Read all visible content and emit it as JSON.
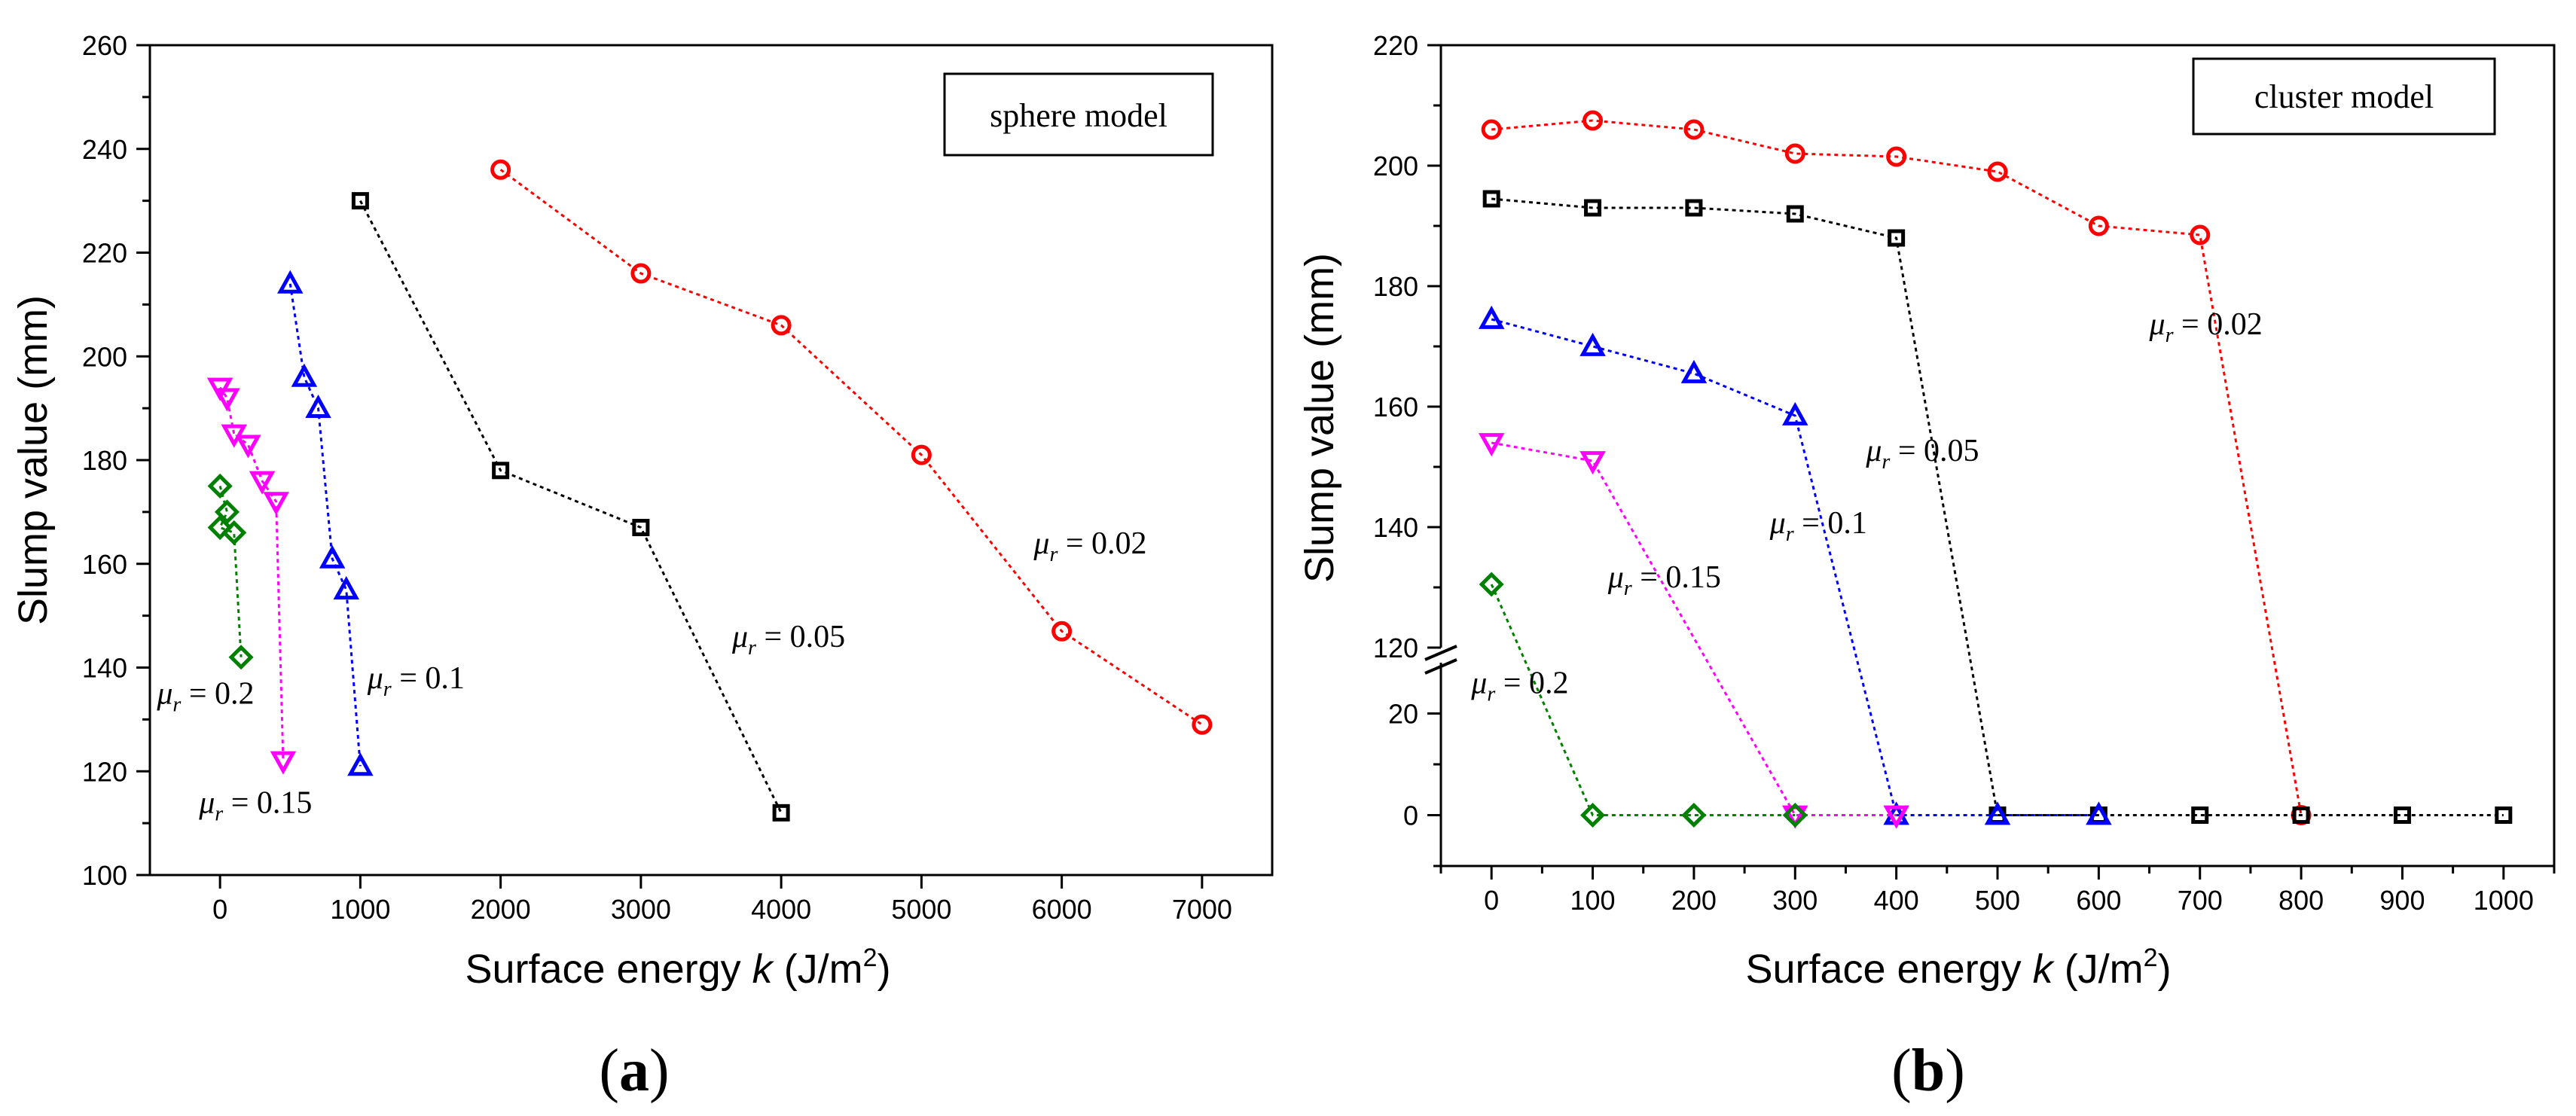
{
  "chart_data": [
    {
      "panel": "(a)",
      "type": "line",
      "legend_text": "sphere model",
      "xlabel": "Surface energy",
      "xlabel_var": "k",
      "xlabel_unit_open": "(J/m",
      "xlabel_unit_sup": "2",
      "xlabel_unit_close": ")",
      "ylabel": "Slump value (mm)",
      "xlim": [
        -500,
        7500
      ],
      "ylim": [
        100,
        260
      ],
      "xticks": [
        0,
        1000,
        2000,
        3000,
        4000,
        5000,
        6000,
        7000
      ],
      "yticks": [
        100,
        120,
        140,
        160,
        180,
        200,
        220,
        240,
        260
      ],
      "series": [
        {
          "name": "μr = 0.02",
          "mu": "0.02",
          "color": "#ff0000",
          "marker": "circle",
          "x": [
            2000,
            3000,
            4000,
            5000,
            6000,
            7000
          ],
          "y": [
            236,
            216,
            206,
            181,
            147,
            129
          ]
        },
        {
          "name": "μr = 0.05",
          "mu": "0.05",
          "color": "#000000",
          "marker": "square",
          "x": [
            1000,
            2000,
            3000,
            4000
          ],
          "y": [
            230,
            178,
            167,
            112
          ]
        },
        {
          "name": "μr = 0.1",
          "mu": "0.1",
          "color": "#0000ff",
          "marker": "triangle-up",
          "x": [
            500,
            600,
            700,
            800,
            900,
            1000
          ],
          "y": [
            214,
            196,
            190,
            161,
            155,
            121
          ]
        },
        {
          "name": "μr = 0.15",
          "mu": "0.15",
          "color": "#ff00ff",
          "marker": "triangle-down",
          "x": [
            0,
            50,
            100,
            200,
            300,
            400,
            450
          ],
          "y": [
            194,
            192,
            185,
            183,
            176,
            172,
            122
          ]
        },
        {
          "name": "μr = 0.2",
          "mu": "0.2",
          "color": "#008000",
          "marker": "diamond",
          "x": [
            0,
            50,
            0,
            100,
            150
          ],
          "y": [
            175,
            170,
            167,
            166,
            142
          ]
        }
      ],
      "annotations": [
        {
          "mu": "0.02",
          "x": 5800,
          "y": 162
        },
        {
          "mu": "0.05",
          "x": 3650,
          "y": 144
        },
        {
          "mu": "0.1",
          "x": 1050,
          "y": 136
        },
        {
          "mu": "0.15",
          "x": -150,
          "y": 112
        },
        {
          "mu": "0.2",
          "x": -450,
          "y": 133
        }
      ]
    },
    {
      "panel": "(b)",
      "type": "line",
      "legend_text": "cluster model",
      "xlabel": "Surface energy",
      "xlabel_var": "k",
      "xlabel_unit_open": "(J/m",
      "xlabel_unit_sup": "2",
      "xlabel_unit_close": ")",
      "ylabel": "Slump value (mm)",
      "xlim": [
        -50,
        1050
      ],
      "ylim_lower": [
        -10,
        30
      ],
      "ylim_upper": [
        120,
        220
      ],
      "axis_break": "between 30 and 120",
      "xticks": [
        0,
        100,
        200,
        300,
        400,
        500,
        600,
        700,
        800,
        900,
        1000
      ],
      "yticks_lower": [
        0,
        20
      ],
      "yticks_upper": [
        120,
        140,
        160,
        180,
        200,
        220
      ],
      "series": [
        {
          "name": "μr = 0.02",
          "mu": "0.02",
          "color": "#ff0000",
          "marker": "circle",
          "x": [
            0,
            100,
            200,
            300,
            400,
            500,
            600,
            700,
            800
          ],
          "y": [
            206,
            207.5,
            206,
            202,
            201.5,
            199,
            190,
            188.5,
            0
          ]
        },
        {
          "name": "μr = 0.05",
          "mu": "0.05",
          "color": "#000000",
          "marker": "square",
          "x": [
            0,
            100,
            200,
            300,
            400,
            500,
            600,
            700,
            800,
            900,
            1000
          ],
          "y": [
            194.5,
            193,
            193,
            192,
            188,
            0,
            0,
            0,
            0,
            0,
            0
          ]
        },
        {
          "name": "μr = 0.1",
          "mu": "0.1",
          "color": "#0000ff",
          "marker": "triangle-up",
          "x": [
            0,
            100,
            200,
            300,
            400,
            500,
            600
          ],
          "y": [
            174.5,
            170,
            165.5,
            158.5,
            0,
            0,
            0
          ]
        },
        {
          "name": "μr = 0.15",
          "mu": "0.15",
          "color": "#ff00ff",
          "marker": "triangle-down",
          "x": [
            0,
            100,
            300,
            400
          ],
          "y": [
            154,
            151,
            0,
            0
          ]
        },
        {
          "name": "μr = 0.2",
          "mu": "0.2",
          "color": "#008000",
          "marker": "diamond",
          "x": [
            0,
            100,
            200,
            300
          ],
          "y": [
            130.5,
            0,
            0,
            0
          ]
        }
      ],
      "annotations": [
        {
          "mu": "0.02",
          "x": 650,
          "y": 172
        },
        {
          "mu": "0.05",
          "x": 370,
          "y": 151
        },
        {
          "mu": "0.1",
          "x": 275,
          "y": 139
        },
        {
          "mu": "0.15",
          "x": 115,
          "y": 130
        },
        {
          "mu": "0.2",
          "x": -20,
          "y": 24
        }
      ]
    }
  ]
}
